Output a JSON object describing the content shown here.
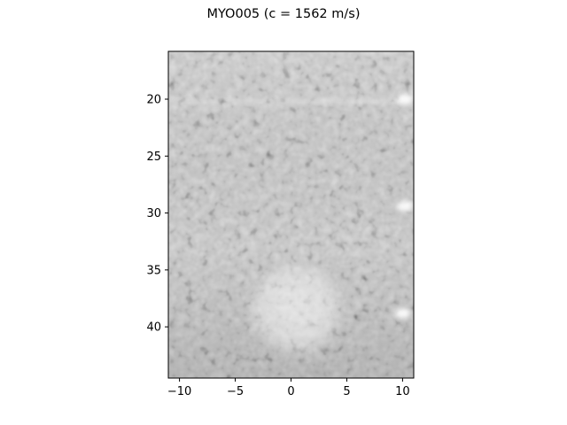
{
  "figure": {
    "title": "MYO005 (c = 1562 m/s)"
  },
  "image": {
    "description_icon": "ultrasound-bmode-image",
    "colormap": "gray",
    "xlim": [
      -11,
      11
    ],
    "ylim": [
      44.5,
      15.8
    ]
  },
  "axes": {
    "x_ticks": [
      {
        "value": -10,
        "label": "−10"
      },
      {
        "value": -5,
        "label": "−5"
      },
      {
        "value": 0,
        "label": "0"
      },
      {
        "value": 5,
        "label": "5"
      },
      {
        "value": 10,
        "label": "10"
      }
    ],
    "y_ticks": [
      {
        "value": 20,
        "label": "20"
      },
      {
        "value": 25,
        "label": "25"
      },
      {
        "value": 30,
        "label": "30"
      },
      {
        "value": 35,
        "label": "35"
      },
      {
        "value": 40,
        "label": "40"
      }
    ]
  },
  "features": {
    "inclusion": {
      "x": 0.5,
      "y": 38.5,
      "r": 4.2
    },
    "bright_wires": [
      {
        "x": 10.2,
        "y": 20.0
      },
      {
        "x": 10.2,
        "y": 29.4
      },
      {
        "x": 10.0,
        "y": 38.8
      }
    ],
    "horizontal_line_y": 20.2
  }
}
